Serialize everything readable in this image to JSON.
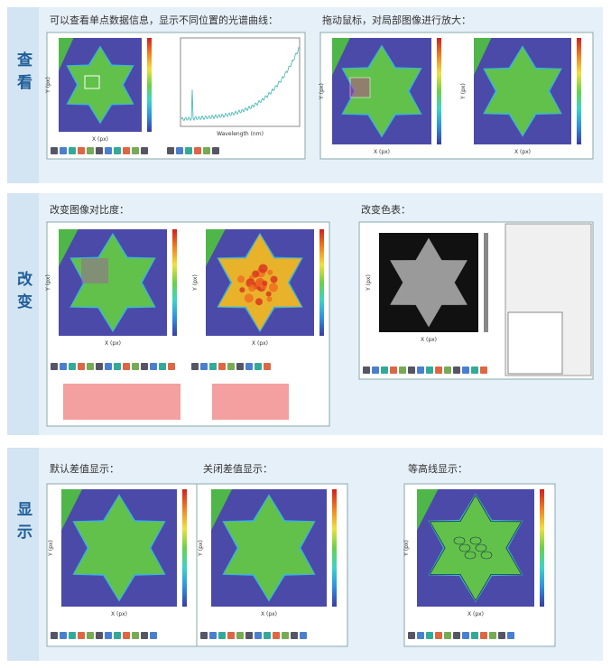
{
  "sections": [
    {
      "label": "查看",
      "panels": [
        {
          "caption": "可以查看单点数据信息，显示不同位置的光谱曲线："
        },
        {
          "caption": "拖动鼠标，对局部图像进行放大："
        }
      ]
    },
    {
      "label": "改变",
      "panels": [
        {
          "caption": "改变图像对比度："
        },
        {
          "caption": "改变色表："
        }
      ]
    },
    {
      "label": "显示",
      "panels": [
        {
          "caption": "默认差值显示："
        },
        {
          "caption": "关闭差值显示："
        },
        {
          "caption": "等高线显示："
        }
      ]
    }
  ],
  "axis_labels": {
    "x": "X (px)",
    "y": "Y (px)",
    "wavelength": "Wavelength (nm)"
  }
}
